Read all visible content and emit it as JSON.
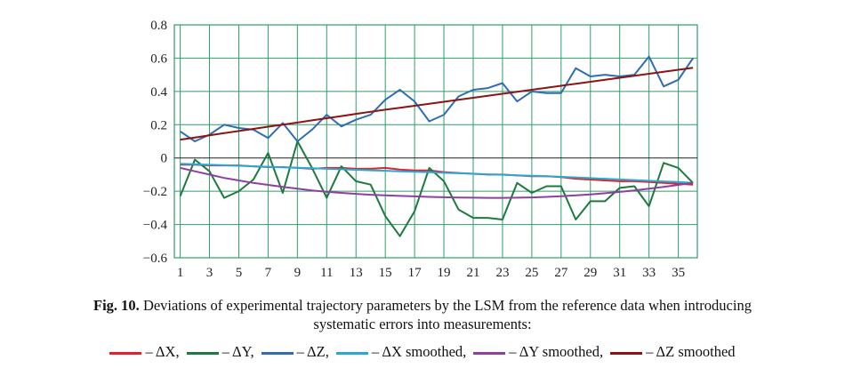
{
  "chart_data": {
    "type": "line",
    "x": [
      1,
      2,
      3,
      4,
      5,
      6,
      7,
      8,
      9,
      10,
      11,
      12,
      13,
      14,
      15,
      16,
      17,
      18,
      19,
      20,
      21,
      22,
      23,
      24,
      25,
      26,
      27,
      28,
      29,
      30,
      31,
      32,
      33,
      34,
      35,
      36
    ],
    "x_ticks": [
      1,
      3,
      5,
      7,
      9,
      11,
      13,
      15,
      17,
      19,
      21,
      23,
      25,
      27,
      29,
      31,
      33,
      35
    ],
    "y_ticks": [
      "0.8",
      "0.6",
      "0.4",
      "0.2",
      "0",
      "−0.2",
      "−0.4",
      "−0.6"
    ],
    "ylim": [
      -0.6,
      0.8
    ],
    "xlim": [
      0.6,
      36.3
    ],
    "grid": true,
    "legend_position": "bottom",
    "series": [
      {
        "name": "– ΔX,",
        "color": "#e0232b",
        "values": [
          -0.04,
          -0.04,
          -0.045,
          -0.045,
          -0.045,
          -0.05,
          -0.055,
          -0.055,
          -0.06,
          -0.065,
          -0.06,
          -0.06,
          -0.065,
          -0.065,
          -0.06,
          -0.07,
          -0.075,
          -0.075,
          -0.085,
          -0.09,
          -0.095,
          -0.1,
          -0.1,
          -0.105,
          -0.11,
          -0.11,
          -0.115,
          -0.125,
          -0.13,
          -0.135,
          -0.14,
          -0.14,
          -0.145,
          -0.15,
          -0.155,
          -0.16
        ]
      },
      {
        "name": "– ΔY,",
        "color": "#1d7a3f",
        "values": [
          -0.23,
          -0.01,
          -0.08,
          -0.24,
          -0.2,
          -0.13,
          0.03,
          -0.21,
          0.1,
          -0.06,
          -0.24,
          -0.05,
          -0.14,
          -0.16,
          -0.35,
          -0.47,
          -0.32,
          -0.06,
          -0.14,
          -0.31,
          -0.36,
          -0.36,
          -0.37,
          -0.15,
          -0.21,
          -0.17,
          -0.17,
          -0.37,
          -0.26,
          -0.26,
          -0.18,
          -0.17,
          -0.29,
          -0.03,
          -0.06,
          -0.15
        ]
      },
      {
        "name": "– ΔZ,",
        "color": "#2f6db3",
        "values": [
          0.16,
          0.1,
          0.14,
          0.2,
          0.18,
          0.17,
          0.12,
          0.21,
          0.1,
          0.17,
          0.26,
          0.19,
          0.23,
          0.26,
          0.35,
          0.41,
          0.34,
          0.22,
          0.26,
          0.37,
          0.41,
          0.42,
          0.45,
          0.34,
          0.4,
          0.39,
          0.39,
          0.54,
          0.49,
          0.5,
          0.49,
          0.5,
          0.61,
          0.43,
          0.47,
          0.6
        ]
      },
      {
        "name": "– ΔX smoothed,",
        "color": "#27a9d7",
        "values": [
          -0.035,
          -0.038,
          -0.041,
          -0.044,
          -0.047,
          -0.05,
          -0.053,
          -0.056,
          -0.059,
          -0.062,
          -0.065,
          -0.068,
          -0.071,
          -0.074,
          -0.077,
          -0.08,
          -0.083,
          -0.086,
          -0.089,
          -0.092,
          -0.095,
          -0.098,
          -0.101,
          -0.104,
          -0.107,
          -0.11,
          -0.113,
          -0.117,
          -0.121,
          -0.125,
          -0.129,
          -0.133,
          -0.137,
          -0.141,
          -0.145,
          -0.15
        ]
      },
      {
        "name": "– ΔY smoothed,",
        "color": "#8e3fa0",
        "values": [
          -0.06,
          -0.08,
          -0.1,
          -0.12,
          -0.135,
          -0.15,
          -0.162,
          -0.174,
          -0.185,
          -0.195,
          -0.203,
          -0.21,
          -0.216,
          -0.221,
          -0.225,
          -0.228,
          -0.231,
          -0.234,
          -0.236,
          -0.238,
          -0.239,
          -0.24,
          -0.24,
          -0.239,
          -0.237,
          -0.234,
          -0.23,
          -0.225,
          -0.219,
          -0.212,
          -0.204,
          -0.195,
          -0.185,
          -0.174,
          -0.162,
          -0.15
        ]
      },
      {
        "name": "– ΔZ smoothed",
        "color": "#8b1414",
        "values": [
          0.11,
          0.123,
          0.136,
          0.149,
          0.162,
          0.175,
          0.188,
          0.2,
          0.213,
          0.226,
          0.239,
          0.252,
          0.265,
          0.278,
          0.29,
          0.302,
          0.314,
          0.326,
          0.338,
          0.35,
          0.362,
          0.374,
          0.386,
          0.398,
          0.41,
          0.422,
          0.434,
          0.446,
          0.458,
          0.47,
          0.482,
          0.494,
          0.506,
          0.518,
          0.53,
          0.542
        ]
      }
    ]
  },
  "caption": {
    "label": "Fig. 10.",
    "text": " Deviations of experimental trajectory parameters by the LSM from the reference data when introducing",
    "line2": "systematic errors into measurements:"
  }
}
